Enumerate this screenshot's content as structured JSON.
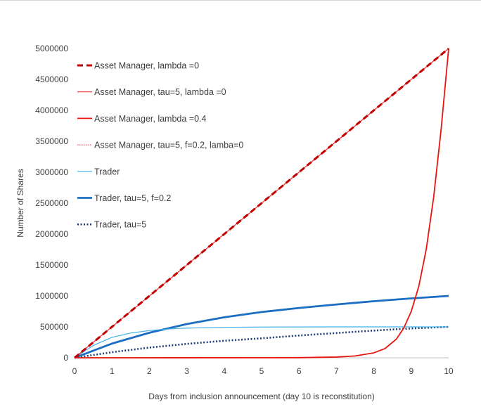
{
  "chart_data": {
    "type": "line",
    "xlabel": "Days from inclusion announcement (day 10 is reconstitution)",
    "ylabel": "Number of Shares",
    "xlim": [
      0,
      10
    ],
    "ylim": [
      0,
      5000000
    ],
    "xticks": [
      "0",
      "1",
      "2",
      "3",
      "4",
      "5",
      "6",
      "7",
      "8",
      "9",
      "10"
    ],
    "yticks": [
      "0",
      "500000",
      "1000000",
      "1500000",
      "2000000",
      "2500000",
      "3000000",
      "3500000",
      "4000000",
      "4500000",
      "5000000"
    ],
    "grid": false,
    "legend_position": "top-left",
    "series": [
      {
        "name": "Asset Manager, lambda =0",
        "color": "#c00000",
        "style": "dashed-thick",
        "x": [
          0,
          10
        ],
        "y": [
          0,
          5000000
        ]
      },
      {
        "name": "Asset Manager, tau=5, lambda =0",
        "color": "#e8312f",
        "style": "solid-thin",
        "x": [
          0,
          10
        ],
        "y": [
          0,
          5000000
        ]
      },
      {
        "name": "Asset Manager, lambda =0.4",
        "color": "#e8150f",
        "style": "solid-medium",
        "x": [
          0,
          6,
          7,
          7.5,
          8,
          8.3,
          8.6,
          8.8,
          9.0,
          9.2,
          9.4,
          9.6,
          9.8,
          10
        ],
        "y": [
          0,
          2000,
          12000,
          30000,
          80000,
          150000,
          300000,
          480000,
          750000,
          1150000,
          1750000,
          2600000,
          3700000,
          5000000
        ]
      },
      {
        "name": "Asset Manager, tau=5, f=0.2, lamba=0",
        "color": "#e8312f",
        "style": "dotted-thin",
        "x": [
          0,
          10
        ],
        "y": [
          0,
          5000000
        ]
      },
      {
        "name": "Trader",
        "color": "#40b0e6",
        "style": "solid-thin",
        "x": [
          0,
          0.5,
          1,
          1.5,
          2,
          2.5,
          3,
          4,
          5,
          6,
          7,
          8,
          9,
          10
        ],
        "y": [
          0,
          200000,
          330000,
          400000,
          440000,
          465000,
          480000,
          492000,
          497000,
          499000,
          500000,
          500000,
          500000,
          500000
        ]
      },
      {
        "name": "Trader, tau=5, f=0.2",
        "color": "#1b6ec2",
        "style": "solid-thick",
        "x": [
          0,
          1,
          2,
          3,
          4,
          5,
          6,
          7,
          8,
          9,
          10
        ],
        "y": [
          0,
          230000,
          405000,
          545000,
          655000,
          740000,
          805000,
          862000,
          915000,
          960000,
          1000000
        ]
      },
      {
        "name": "Trader, tau=5",
        "color": "#203f7a",
        "style": "dotted-thick",
        "x": [
          0,
          1,
          2,
          3,
          4,
          5,
          6,
          7,
          8,
          9,
          10
        ],
        "y": [
          0,
          90000,
          165000,
          225000,
          275000,
          315000,
          360000,
          400000,
          440000,
          475000,
          500000
        ]
      }
    ]
  }
}
